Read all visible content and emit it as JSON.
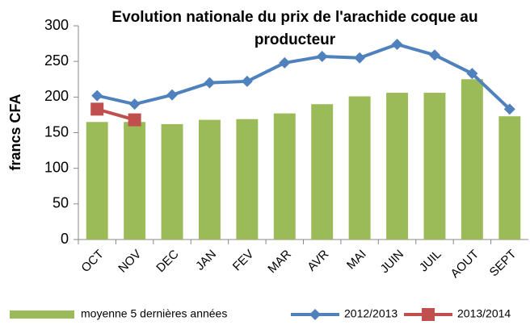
{
  "chart_data": {
    "type": "bar",
    "title": "Evolution nationale du prix de l'arachide coque au producteur",
    "y_label": "francs CFA",
    "categories": [
      "OCT",
      "NOV",
      "DEC",
      "JAN",
      "FEV",
      "MAR",
      "AVR",
      "MAI",
      "JUIN",
      "JUIL",
      "AOUT",
      "SEPT"
    ],
    "series": [
      {
        "name": "moyenne 5 dernières années",
        "type": "bar",
        "color": "#9bbb59",
        "values": [
          165,
          165,
          162,
          168,
          169,
          177,
          190,
          201,
          206,
          206,
          225,
          173
        ]
      },
      {
        "name": "2012/2013",
        "type": "line",
        "marker": "diamond",
        "color": "#4f81bd",
        "values": [
          202,
          190,
          203,
          220,
          222,
          248,
          257,
          255,
          274,
          259,
          233,
          183
        ]
      },
      {
        "name": "2013/2014",
        "type": "line",
        "marker": "square",
        "color": "#c0504d",
        "values": [
          183,
          168,
          null,
          null,
          null,
          null,
          null,
          null,
          null,
          null,
          null,
          null
        ]
      }
    ],
    "ylim": [
      0,
      300
    ],
    "yticks": [
      0,
      50,
      100,
      150,
      200,
      250,
      300
    ],
    "grid": false,
    "legend": "bottom"
  }
}
